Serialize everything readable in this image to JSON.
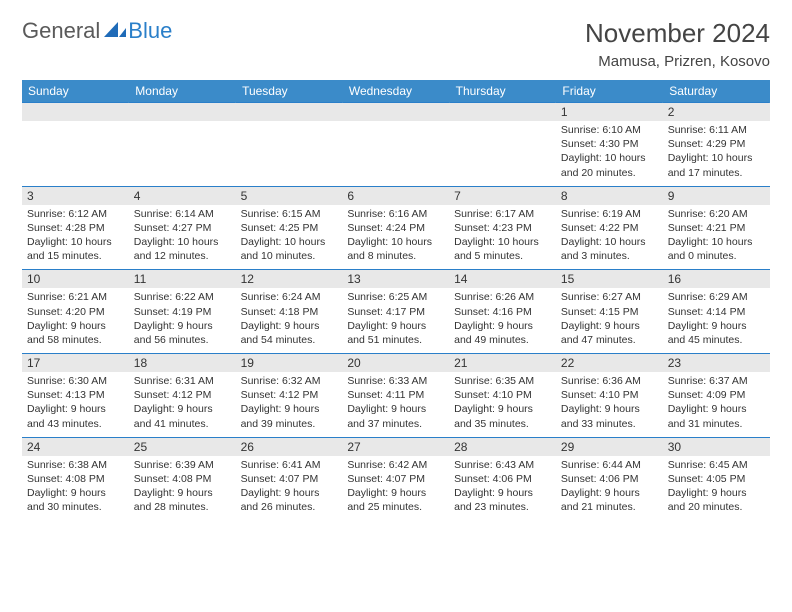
{
  "logo": {
    "general": "General",
    "blue": "Blue"
  },
  "title": "November 2024",
  "location": "Mamusa, Prizren, Kosovo",
  "colors": {
    "header_bg": "#3b8bc9",
    "border": "#2a7fc9",
    "daynum_bg": "#e8e8e8",
    "text": "#333333",
    "logo_gray": "#5a5a5a",
    "logo_blue": "#2a7fc9"
  },
  "dayNames": [
    "Sunday",
    "Monday",
    "Tuesday",
    "Wednesday",
    "Thursday",
    "Friday",
    "Saturday"
  ],
  "weeks": [
    [
      null,
      null,
      null,
      null,
      null,
      {
        "n": "1",
        "sr": "6:10 AM",
        "ss": "4:30 PM",
        "dl": "10 hours and 20 minutes."
      },
      {
        "n": "2",
        "sr": "6:11 AM",
        "ss": "4:29 PM",
        "dl": "10 hours and 17 minutes."
      }
    ],
    [
      {
        "n": "3",
        "sr": "6:12 AM",
        "ss": "4:28 PM",
        "dl": "10 hours and 15 minutes."
      },
      {
        "n": "4",
        "sr": "6:14 AM",
        "ss": "4:27 PM",
        "dl": "10 hours and 12 minutes."
      },
      {
        "n": "5",
        "sr": "6:15 AM",
        "ss": "4:25 PM",
        "dl": "10 hours and 10 minutes."
      },
      {
        "n": "6",
        "sr": "6:16 AM",
        "ss": "4:24 PM",
        "dl": "10 hours and 8 minutes."
      },
      {
        "n": "7",
        "sr": "6:17 AM",
        "ss": "4:23 PM",
        "dl": "10 hours and 5 minutes."
      },
      {
        "n": "8",
        "sr": "6:19 AM",
        "ss": "4:22 PM",
        "dl": "10 hours and 3 minutes."
      },
      {
        "n": "9",
        "sr": "6:20 AM",
        "ss": "4:21 PM",
        "dl": "10 hours and 0 minutes."
      }
    ],
    [
      {
        "n": "10",
        "sr": "6:21 AM",
        "ss": "4:20 PM",
        "dl": "9 hours and 58 minutes."
      },
      {
        "n": "11",
        "sr": "6:22 AM",
        "ss": "4:19 PM",
        "dl": "9 hours and 56 minutes."
      },
      {
        "n": "12",
        "sr": "6:24 AM",
        "ss": "4:18 PM",
        "dl": "9 hours and 54 minutes."
      },
      {
        "n": "13",
        "sr": "6:25 AM",
        "ss": "4:17 PM",
        "dl": "9 hours and 51 minutes."
      },
      {
        "n": "14",
        "sr": "6:26 AM",
        "ss": "4:16 PM",
        "dl": "9 hours and 49 minutes."
      },
      {
        "n": "15",
        "sr": "6:27 AM",
        "ss": "4:15 PM",
        "dl": "9 hours and 47 minutes."
      },
      {
        "n": "16",
        "sr": "6:29 AM",
        "ss": "4:14 PM",
        "dl": "9 hours and 45 minutes."
      }
    ],
    [
      {
        "n": "17",
        "sr": "6:30 AM",
        "ss": "4:13 PM",
        "dl": "9 hours and 43 minutes."
      },
      {
        "n": "18",
        "sr": "6:31 AM",
        "ss": "4:12 PM",
        "dl": "9 hours and 41 minutes."
      },
      {
        "n": "19",
        "sr": "6:32 AM",
        "ss": "4:12 PM",
        "dl": "9 hours and 39 minutes."
      },
      {
        "n": "20",
        "sr": "6:33 AM",
        "ss": "4:11 PM",
        "dl": "9 hours and 37 minutes."
      },
      {
        "n": "21",
        "sr": "6:35 AM",
        "ss": "4:10 PM",
        "dl": "9 hours and 35 minutes."
      },
      {
        "n": "22",
        "sr": "6:36 AM",
        "ss": "4:10 PM",
        "dl": "9 hours and 33 minutes."
      },
      {
        "n": "23",
        "sr": "6:37 AM",
        "ss": "4:09 PM",
        "dl": "9 hours and 31 minutes."
      }
    ],
    [
      {
        "n": "24",
        "sr": "6:38 AM",
        "ss": "4:08 PM",
        "dl": "9 hours and 30 minutes."
      },
      {
        "n": "25",
        "sr": "6:39 AM",
        "ss": "4:08 PM",
        "dl": "9 hours and 28 minutes."
      },
      {
        "n": "26",
        "sr": "6:41 AM",
        "ss": "4:07 PM",
        "dl": "9 hours and 26 minutes."
      },
      {
        "n": "27",
        "sr": "6:42 AM",
        "ss": "4:07 PM",
        "dl": "9 hours and 25 minutes."
      },
      {
        "n": "28",
        "sr": "6:43 AM",
        "ss": "4:06 PM",
        "dl": "9 hours and 23 minutes."
      },
      {
        "n": "29",
        "sr": "6:44 AM",
        "ss": "4:06 PM",
        "dl": "9 hours and 21 minutes."
      },
      {
        "n": "30",
        "sr": "6:45 AM",
        "ss": "4:05 PM",
        "dl": "9 hours and 20 minutes."
      }
    ]
  ],
  "labels": {
    "sunrise": "Sunrise:",
    "sunset": "Sunset:",
    "daylight": "Daylight:"
  }
}
